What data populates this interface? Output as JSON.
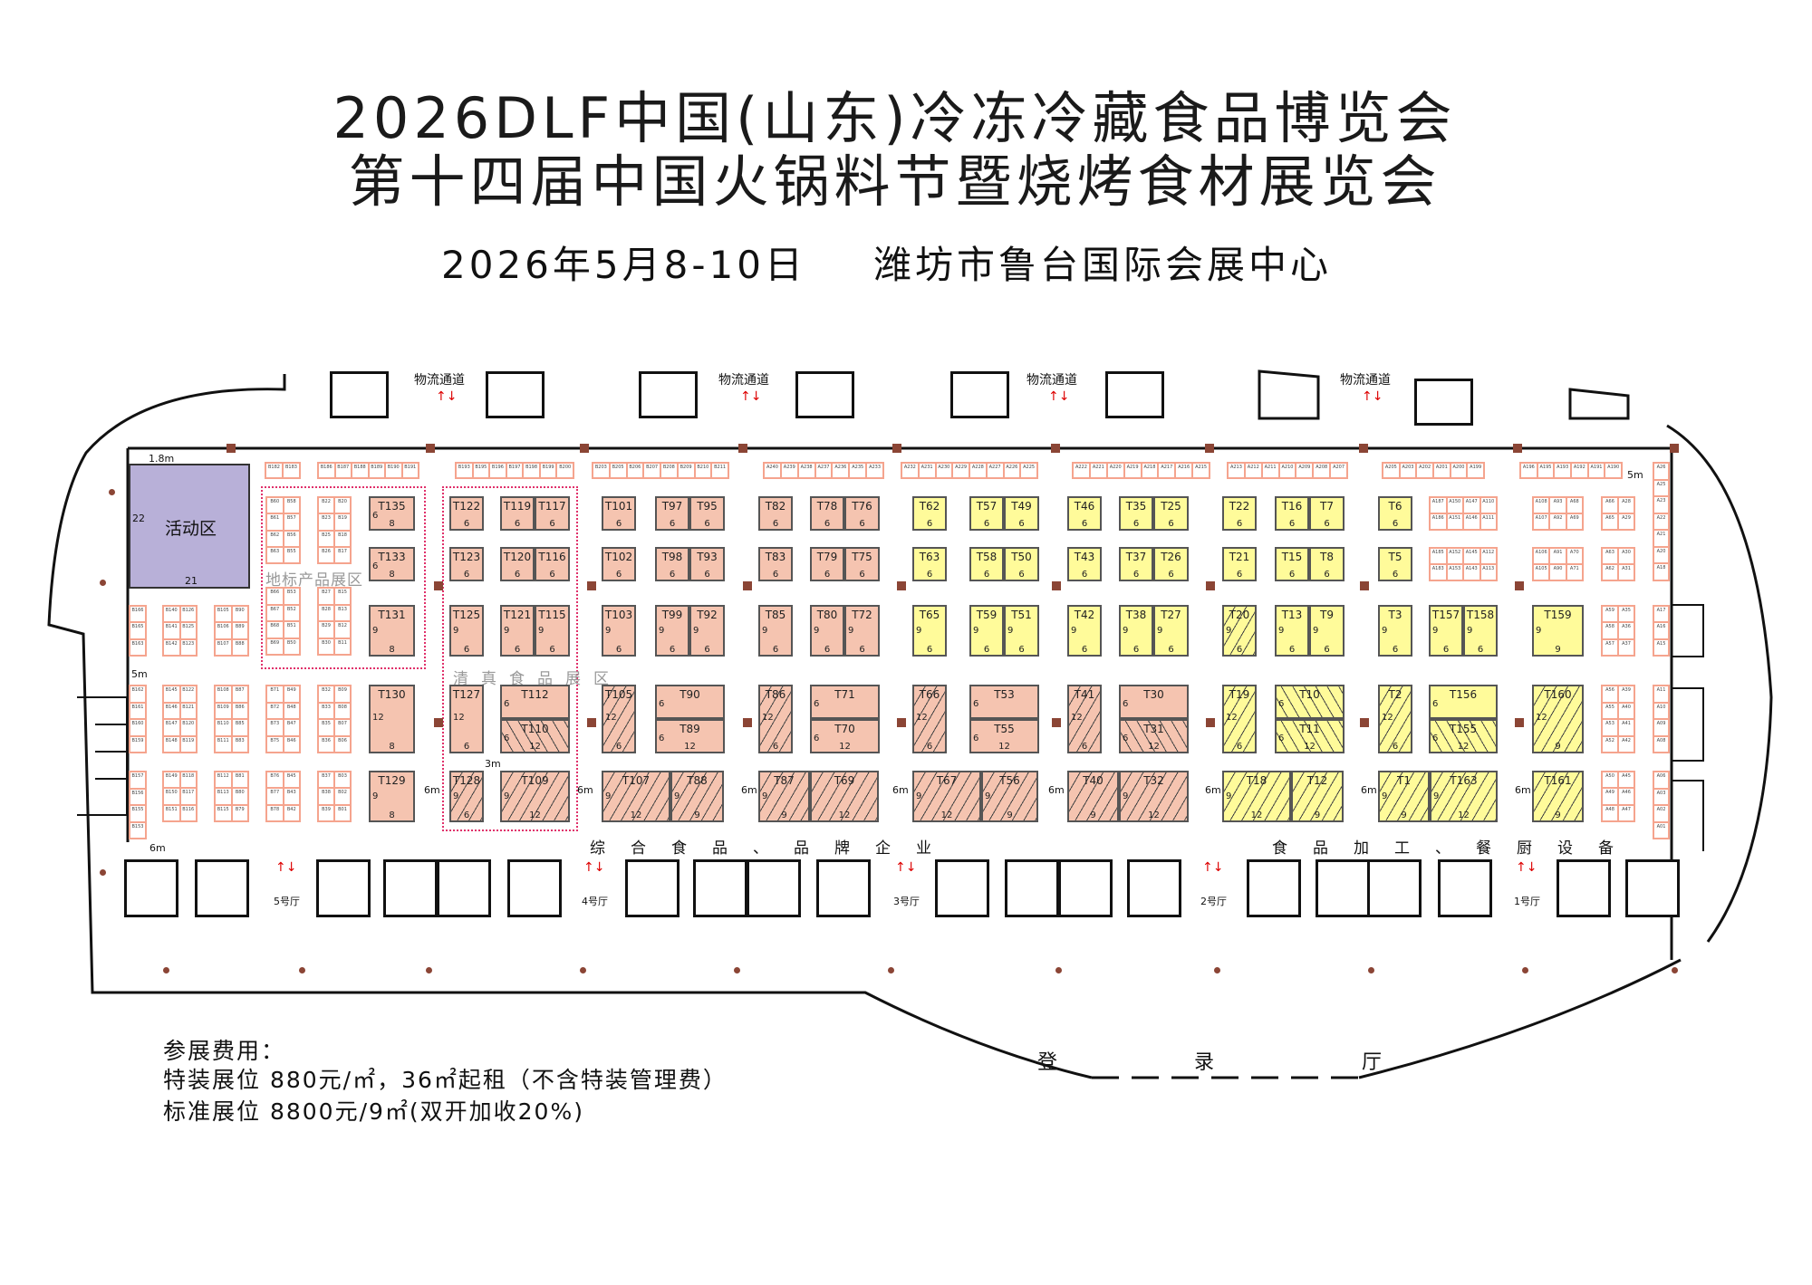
{
  "header": {
    "title_line1": "2026DLF中国(山东)冷冻冷藏食品博览会",
    "title_line2": "第十四届中国火锅料节暨烧烤食材展览会",
    "date": "2026年5月8-10日",
    "venue": "潍坊市鲁台国际会展中心"
  },
  "colors": {
    "general": "#f5c4b0",
    "processing": "#fffb9a",
    "activity": "#b8b0d8",
    "pillar": "#8b4535",
    "zone_border": "#e0306a"
  },
  "activity_area": {
    "label": "活动区",
    "side": "22",
    "bottom": "21"
  },
  "zones": {
    "local": "地标产品展区",
    "halal": "清真食品展区"
  },
  "sections": {
    "general": "综合食品、品牌企业",
    "processing": "食品加工、餐厨设备"
  },
  "logistics_label": "物流通道",
  "halls": [
    "5号厅",
    "4号厅",
    "3号厅",
    "2号厅",
    "1号厅"
  ],
  "lobby": [
    "登",
    "录",
    "厅"
  ],
  "dims": {
    "aisle6": "6m",
    "aisle3": "3m",
    "aisle5": "5m",
    "gap18": "1.8m"
  },
  "fees": {
    "heading": "参展费用：",
    "special": "特装展位 880元/㎡，36㎡起租（不含特装管理费）",
    "standard": "标准展位 8800元/9㎡(双开加收20%)"
  },
  "booths": [
    {
      "label": "T135",
      "d": [
        "6",
        "8"
      ],
      "c": "pink"
    },
    {
      "label": "T133",
      "d": [
        "6",
        "8"
      ],
      "c": "pink"
    },
    {
      "label": "T131",
      "d": [
        "9",
        "8"
      ],
      "c": "pink"
    },
    {
      "label": "T130",
      "d": [
        "12",
        "8"
      ],
      "c": "pink"
    },
    {
      "label": "T129",
      "d": [
        "9",
        "8"
      ],
      "c": "pink"
    },
    {
      "label": "T122",
      "d": [
        "",
        "6"
      ],
      "c": "pink"
    },
    {
      "label": "T123",
      "d": [
        "",
        "6"
      ],
      "c": "pink"
    },
    {
      "label": "T125",
      "d": [
        "9",
        "6"
      ],
      "c": "pink"
    },
    {
      "label": "T127",
      "d": [
        "12",
        "6"
      ],
      "c": "pink"
    },
    {
      "label": "T128",
      "d": [
        "9",
        "6"
      ],
      "c": "pink",
      "h": "f"
    },
    {
      "label": "T119",
      "d": [
        "",
        "6"
      ],
      "c": "pink"
    },
    {
      "label": "T117",
      "d": [
        "",
        "6"
      ],
      "c": "pink"
    },
    {
      "label": "T120",
      "d": [
        "",
        "6"
      ],
      "c": "pink"
    },
    {
      "label": "T116",
      "d": [
        "",
        "6"
      ],
      "c": "pink"
    },
    {
      "label": "T121",
      "d": [
        "9",
        "6"
      ],
      "c": "pink"
    },
    {
      "label": "T115",
      "d": [
        "9",
        "6"
      ],
      "c": "pink"
    },
    {
      "label": "T112",
      "d": [
        "6",
        ""
      ],
      "c": "pink"
    },
    {
      "label": "T110",
      "d": [
        "6",
        "12"
      ],
      "c": "pink",
      "h": "b"
    },
    {
      "label": "T109",
      "d": [
        "9",
        "12"
      ],
      "c": "pink",
      "h": "f"
    },
    {
      "label": "T101",
      "d": [
        "",
        "6"
      ],
      "c": "pink"
    },
    {
      "label": "T102",
      "d": [
        "",
        "6"
      ],
      "c": "pink"
    },
    {
      "label": "T103",
      "d": [
        "9",
        "6"
      ],
      "c": "pink"
    },
    {
      "label": "T105",
      "d": [
        "12",
        "6"
      ],
      "c": "pink",
      "h": "f"
    },
    {
      "label": "T107",
      "d": [
        "9",
        "12"
      ],
      "c": "pink",
      "h": "f"
    },
    {
      "label": "T97",
      "d": [
        "",
        "6"
      ],
      "c": "pink"
    },
    {
      "label": "T95",
      "d": [
        "",
        "6"
      ],
      "c": "pink"
    },
    {
      "label": "T98",
      "d": [
        "",
        "6"
      ],
      "c": "pink"
    },
    {
      "label": "T93",
      "d": [
        "",
        "6"
      ],
      "c": "pink"
    },
    {
      "label": "T99",
      "d": [
        "9",
        "6"
      ],
      "c": "pink"
    },
    {
      "label": "T92",
      "d": [
        "9",
        "6"
      ],
      "c": "pink"
    },
    {
      "label": "T90",
      "d": [
        "6",
        ""
      ],
      "c": "pink"
    },
    {
      "label": "T89",
      "d": [
        "6",
        "12"
      ],
      "c": "pink"
    },
    {
      "label": "T88",
      "d": [
        "9",
        "9"
      ],
      "c": "pink",
      "h": "f"
    },
    {
      "label": "T82",
      "d": [
        "",
        "6"
      ],
      "c": "pink"
    },
    {
      "label": "T83",
      "d": [
        "",
        "6"
      ],
      "c": "pink"
    },
    {
      "label": "T85",
      "d": [
        "9",
        "6"
      ],
      "c": "pink"
    },
    {
      "label": "T86",
      "d": [
        "12",
        "6"
      ],
      "c": "pink",
      "h": "f"
    },
    {
      "label": "T87",
      "d": [
        "9",
        "9"
      ],
      "c": "pink",
      "h": "f"
    },
    {
      "label": "T78",
      "d": [
        "",
        "6"
      ],
      "c": "pink"
    },
    {
      "label": "T76",
      "d": [
        "",
        "6"
      ],
      "c": "pink"
    },
    {
      "label": "T79",
      "d": [
        "",
        "6"
      ],
      "c": "pink"
    },
    {
      "label": "T75",
      "d": [
        "",
        "6"
      ],
      "c": "pink"
    },
    {
      "label": "T80",
      "d": [
        "9",
        "6"
      ],
      "c": "pink"
    },
    {
      "label": "T72",
      "d": [
        "9",
        "6"
      ],
      "c": "pink"
    },
    {
      "label": "T71",
      "d": [
        "6",
        ""
      ],
      "c": "pink"
    },
    {
      "label": "T70",
      "d": [
        "6",
        "12"
      ],
      "c": "pink"
    },
    {
      "label": "T69",
      "d": [
        "",
        "12"
      ],
      "c": "pink",
      "h": "f"
    },
    {
      "label": "T62",
      "d": [
        "",
        "6"
      ],
      "c": "yellow"
    },
    {
      "label": "T63",
      "d": [
        "",
        "6"
      ],
      "c": "yellow"
    },
    {
      "label": "T65",
      "d": [
        "9",
        "6"
      ],
      "c": "yellow"
    },
    {
      "label": "T66",
      "d": [
        "12",
        "6"
      ],
      "c": "pink",
      "h": "f"
    },
    {
      "label": "T67",
      "d": [
        "9",
        "12"
      ],
      "c": "pink",
      "h": "f"
    },
    {
      "label": "T57",
      "d": [
        "",
        "6"
      ],
      "c": "yellow"
    },
    {
      "label": "T49",
      "d": [
        "",
        "6"
      ],
      "c": "yellow"
    },
    {
      "label": "T58",
      "d": [
        "",
        "6"
      ],
      "c": "yellow"
    },
    {
      "label": "T50",
      "d": [
        "",
        "6"
      ],
      "c": "yellow"
    },
    {
      "label": "T59",
      "d": [
        "9",
        "6"
      ],
      "c": "yellow"
    },
    {
      "label": "T51",
      "d": [
        "9",
        "6"
      ],
      "c": "yellow"
    },
    {
      "label": "T53",
      "d": [
        "6",
        ""
      ],
      "c": "pink"
    },
    {
      "label": "T55",
      "d": [
        "6",
        "12"
      ],
      "c": "pink"
    },
    {
      "label": "T56",
      "d": [
        "9",
        "9"
      ],
      "c": "pink",
      "h": "f"
    },
    {
      "label": "T46",
      "d": [
        "",
        "6"
      ],
      "c": "yellow"
    },
    {
      "label": "T43",
      "d": [
        "",
        "6"
      ],
      "c": "yellow"
    },
    {
      "label": "T42",
      "d": [
        "9",
        "6"
      ],
      "c": "yellow"
    },
    {
      "label": "T41",
      "d": [
        "12",
        "6"
      ],
      "c": "pink",
      "h": "f"
    },
    {
      "label": "T40",
      "d": [
        "",
        "9"
      ],
      "c": "pink",
      "h": "f"
    },
    {
      "label": "T35",
      "d": [
        "",
        "6"
      ],
      "c": "yellow"
    },
    {
      "label": "T25",
      "d": [
        "",
        "6"
      ],
      "c": "yellow"
    },
    {
      "label": "T37",
      "d": [
        "",
        "6"
      ],
      "c": "yellow"
    },
    {
      "label": "T26",
      "d": [
        "",
        "6"
      ],
      "c": "yellow"
    },
    {
      "label": "T38",
      "d": [
        "9",
        "6"
      ],
      "c": "yellow"
    },
    {
      "label": "T27",
      "d": [
        "9",
        "6"
      ],
      "c": "yellow"
    },
    {
      "label": "T30",
      "d": [
        "6",
        ""
      ],
      "c": "pink"
    },
    {
      "label": "T31",
      "d": [
        "6",
        "12"
      ],
      "c": "pink",
      "h": "b"
    },
    {
      "label": "T32",
      "d": [
        "9",
        "12"
      ],
      "c": "pink",
      "h": "f"
    },
    {
      "label": "T22",
      "d": [
        "",
        "6"
      ],
      "c": "yellow"
    },
    {
      "label": "T21",
      "d": [
        "",
        "6"
      ],
      "c": "yellow"
    },
    {
      "label": "T20",
      "d": [
        "9",
        "6"
      ],
      "c": "yellow",
      "h": "f"
    },
    {
      "label": "T19",
      "d": [
        "12",
        "6"
      ],
      "c": "yellow",
      "h": "f"
    },
    {
      "label": "T18",
      "d": [
        "9",
        "12"
      ],
      "c": "yellow",
      "h": "f"
    },
    {
      "label": "T16",
      "d": [
        "",
        "6"
      ],
      "c": "yellow"
    },
    {
      "label": "T7",
      "d": [
        "",
        "6"
      ],
      "c": "yellow"
    },
    {
      "label": "T15",
      "d": [
        "",
        "6"
      ],
      "c": "yellow"
    },
    {
      "label": "T8",
      "d": [
        "",
        "6"
      ],
      "c": "yellow"
    },
    {
      "label": "T13",
      "d": [
        "9",
        "6"
      ],
      "c": "yellow"
    },
    {
      "label": "T9",
      "d": [
        "9",
        "6"
      ],
      "c": "yellow"
    },
    {
      "label": "T10",
      "d": [
        "6",
        ""
      ],
      "c": "yellow",
      "h": "b"
    },
    {
      "label": "T11",
      "d": [
        "6",
        "12"
      ],
      "c": "yellow",
      "h": "b"
    },
    {
      "label": "T12",
      "d": [
        "",
        "9"
      ],
      "c": "yellow",
      "h": "f"
    },
    {
      "label": "T6",
      "d": [
        "",
        "6"
      ],
      "c": "yellow"
    },
    {
      "label": "T5",
      "d": [
        "",
        "6"
      ],
      "c": "yellow"
    },
    {
      "label": "T3",
      "d": [
        "9",
        "6"
      ],
      "c": "yellow"
    },
    {
      "label": "T2",
      "d": [
        "12",
        "6"
      ],
      "c": "yellow",
      "h": "f"
    },
    {
      "label": "T1",
      "d": [
        "9",
        "9"
      ],
      "c": "yellow",
      "h": "f"
    },
    {
      "label": "T157",
      "d": [
        "9",
        "6"
      ],
      "c": "yellow"
    },
    {
      "label": "T158",
      "d": [
        "9",
        "6"
      ],
      "c": "yellow"
    },
    {
      "label": "T156",
      "d": [
        "6",
        ""
      ],
      "c": "yellow"
    },
    {
      "label": "T155",
      "d": [
        "6",
        "12"
      ],
      "c": "yellow",
      "h": "b"
    },
    {
      "label": "T163",
      "d": [
        "9",
        "12"
      ],
      "c": "yellow",
      "h": "f"
    },
    {
      "label": "T159",
      "d": [
        "9",
        "9"
      ],
      "c": "yellow"
    },
    {
      "label": "T160",
      "d": [
        "12",
        "9"
      ],
      "c": "yellow",
      "h": "f"
    },
    {
      "label": "T161",
      "d": [
        "",
        "9"
      ],
      "c": "yellow",
      "h": "f"
    }
  ],
  "small_blocks": [
    [
      [
        "B182",
        "B183"
      ]
    ],
    [
      [
        "B186",
        "B187",
        "B188",
        "B189",
        "B190",
        "B191"
      ]
    ],
    [
      [
        "B193",
        "B195",
        "B196",
        "B197",
        "B198",
        "B199",
        "B200"
      ]
    ],
    [
      [
        "B203",
        "B205",
        "B206",
        "B207",
        "B208",
        "B209",
        "B210",
        "B211"
      ]
    ],
    [
      [
        "A240",
        "A239",
        "A238",
        "A237",
        "A236",
        "A235",
        "A233"
      ]
    ],
    [
      [
        "A232",
        "A231",
        "A230",
        "A229",
        "A228",
        "A227",
        "A226",
        "A225"
      ]
    ],
    [
      [
        "A222",
        "A221",
        "A220",
        "A219",
        "A218",
        "A217",
        "A216",
        "A215"
      ]
    ],
    [
      [
        "A213",
        "A212",
        "A211",
        "A210",
        "A209",
        "A208",
        "A207"
      ]
    ],
    [
      [
        "A205",
        "A203",
        "A202",
        "A201",
        "A200",
        "A199"
      ]
    ],
    [
      [
        "A196",
        "A195",
        "A193",
        "A192",
        "A191",
        "A190"
      ]
    ],
    [
      [
        "A26"
      ],
      [
        "A25"
      ],
      [
        "A23"
      ],
      [
        "A22"
      ],
      [
        "A21"
      ],
      [
        "A20"
      ],
      [
        "A18"
      ]
    ],
    [
      [
        "A17"
      ],
      [
        "A16"
      ],
      [
        "A15"
      ]
    ],
    [
      [
        "A11"
      ],
      [
        "A10"
      ],
      [
        "A09"
      ],
      [
        "A08"
      ]
    ],
    [
      [
        "A06"
      ],
      [
        "A03"
      ],
      [
        "A02"
      ],
      [
        "A01"
      ]
    ],
    [
      [
        "A187",
        "A150",
        "A147",
        "A110"
      ],
      [
        "A186",
        "A151",
        "A146",
        "A111"
      ]
    ],
    [
      [
        "A185",
        "A152",
        "A145",
        "A112"
      ],
      [
        "A183",
        "A153",
        "A143",
        "A113"
      ]
    ],
    [
      [
        "A108",
        "A93",
        "A68"
      ],
      [
        "A107",
        "A92",
        "A69"
      ]
    ],
    [
      [
        "A106",
        "A91",
        "A70"
      ],
      [
        "A105",
        "A90",
        "A71"
      ]
    ],
    [
      [
        "A66",
        "A28"
      ],
      [
        "A65",
        "A29"
      ]
    ],
    [
      [
        "A63",
        "A30"
      ],
      [
        "A62",
        "A31"
      ]
    ],
    [
      [
        "A59",
        "A35"
      ],
      [
        "A58",
        "A36"
      ],
      [
        "A57",
        "A37"
      ]
    ],
    [
      [
        "A56",
        "A39"
      ],
      [
        "A55",
        "A40"
      ],
      [
        "A53",
        "A41"
      ],
      [
        "A52",
        "A42"
      ]
    ],
    [
      [
        "A50",
        "A45"
      ],
      [
        "A49",
        "A46"
      ],
      [
        "A48",
        "A47"
      ]
    ],
    [
      [
        "B166"
      ],
      [
        "B165"
      ],
      [
        "B163"
      ]
    ],
    [
      [
        "B162"
      ],
      [
        "B161"
      ],
      [
        "B160"
      ],
      [
        "B159"
      ]
    ],
    [
      [
        "B157"
      ],
      [
        "B156"
      ],
      [
        "B155"
      ],
      [
        "B153"
      ]
    ],
    [
      [
        "B140",
        "B126"
      ],
      [
        "B141",
        "B125"
      ],
      [
        "B142",
        "B123"
      ]
    ],
    [
      [
        "B145",
        "B122"
      ],
      [
        "B146",
        "B121"
      ],
      [
        "B147",
        "B120"
      ],
      [
        "B148",
        "B119"
      ]
    ],
    [
      [
        "B149",
        "B118"
      ],
      [
        "B150",
        "B117"
      ],
      [
        "B151",
        "B116"
      ]
    ],
    [
      [
        "B105",
        "B90"
      ],
      [
        "B106",
        "B89"
      ],
      [
        "B107",
        "B88"
      ]
    ],
    [
      [
        "B108",
        "B87"
      ],
      [
        "B109",
        "B86"
      ],
      [
        "B110",
        "B85"
      ],
      [
        "B111",
        "B83"
      ]
    ],
    [
      [
        "B112",
        "B81"
      ],
      [
        "B113",
        "B80"
      ],
      [
        "B115",
        "B79"
      ]
    ],
    [
      [
        "B60",
        "B58"
      ],
      [
        "B61",
        "B57"
      ],
      [
        "B62",
        "B56"
      ],
      [
        "B63",
        "B55"
      ]
    ],
    [
      [
        "B66",
        "B53"
      ],
      [
        "B67",
        "B52"
      ],
      [
        "B68",
        "B51"
      ],
      [
        "B69",
        "B50"
      ]
    ],
    [
      [
        "B71",
        "B49"
      ],
      [
        "B72",
        "B48"
      ],
      [
        "B73",
        "B47"
      ],
      [
        "B75",
        "B46"
      ]
    ],
    [
      [
        "B76",
        "B45"
      ],
      [
        "B77",
        "B43"
      ],
      [
        "B78",
        "B42"
      ]
    ],
    [
      [
        "B22",
        "B20"
      ],
      [
        "B23",
        "B19"
      ],
      [
        "B25",
        "B18"
      ],
      [
        "B26",
        "B17"
      ]
    ],
    [
      [
        "B27",
        "B15"
      ],
      [
        "B28",
        "B13"
      ],
      [
        "B29",
        "B12"
      ],
      [
        "B30",
        "B11"
      ]
    ],
    [
      [
        "B32",
        "B09"
      ],
      [
        "B33",
        "B08"
      ],
      [
        "B35",
        "B07"
      ],
      [
        "B36",
        "B06"
      ]
    ],
    [
      [
        "B37",
        "B03"
      ],
      [
        "B38",
        "B02"
      ],
      [
        "B39",
        "B01"
      ]
    ]
  ]
}
